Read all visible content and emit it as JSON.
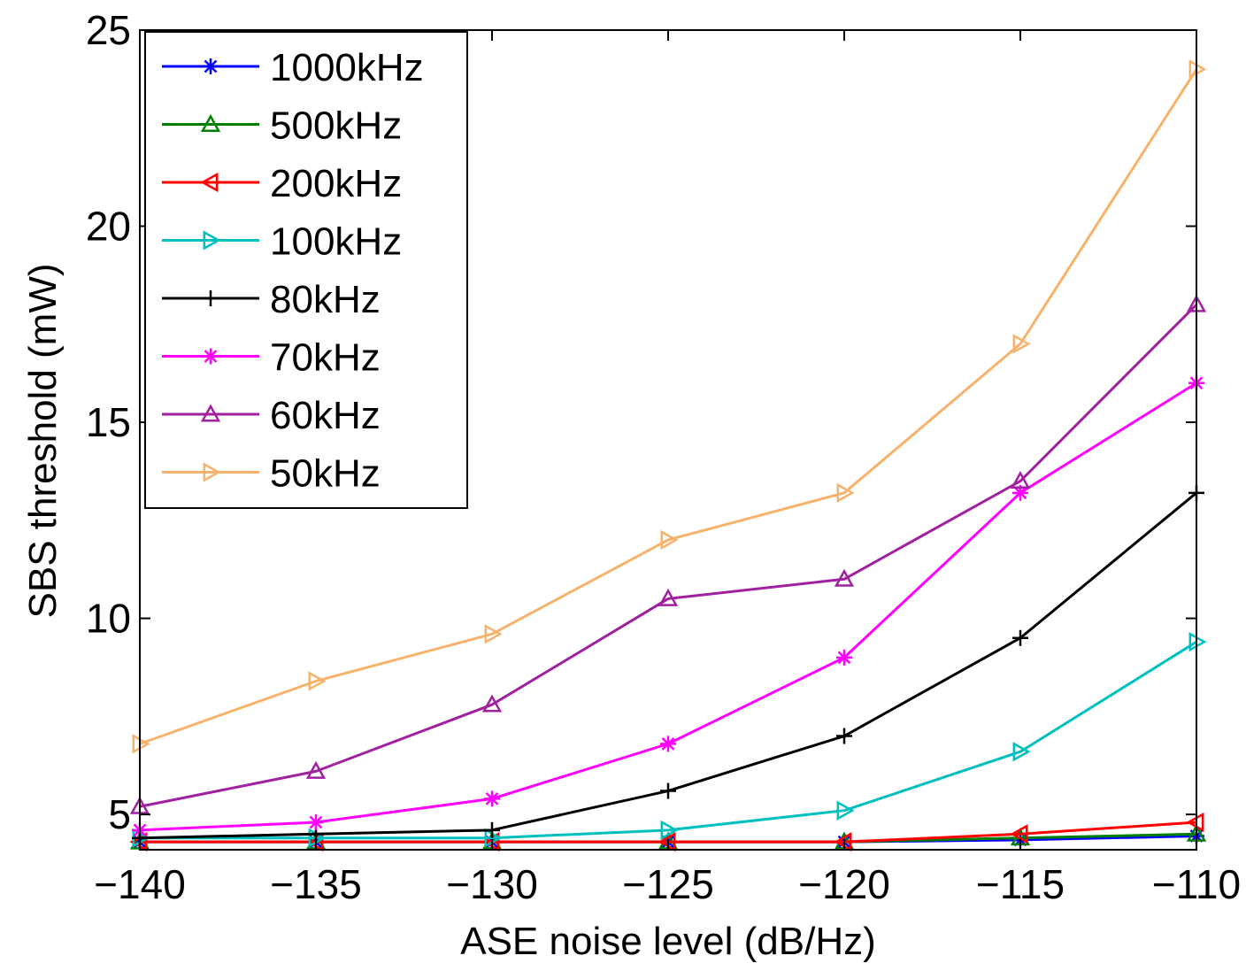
{
  "chart_data": {
    "type": "line",
    "title": "",
    "xlabel": "ASE noise level (dB/Hz)",
    "ylabel": "SBS threshold (mW)",
    "xlim": [
      -140,
      -110
    ],
    "ylim": [
      4.1,
      25
    ],
    "xticks": [
      -140,
      -135,
      -130,
      -125,
      -120,
      -115,
      -110
    ],
    "yticks": [
      5,
      10,
      15,
      20,
      25
    ],
    "x": [
      -140,
      -135,
      -130,
      -125,
      -120,
      -115,
      -110
    ],
    "grid": false,
    "legend_position": "top-left",
    "series": [
      {
        "name": "1000kHz",
        "color": "#0000ff",
        "marker": "asterisk",
        "values": [
          4.3,
          4.3,
          4.3,
          4.3,
          4.3,
          4.35,
          4.45
        ]
      },
      {
        "name": "500kHz",
        "color": "#008000",
        "marker": "triangle-up",
        "values": [
          4.3,
          4.3,
          4.3,
          4.3,
          4.3,
          4.4,
          4.5
        ]
      },
      {
        "name": "200kHz",
        "color": "#ff0000",
        "marker": "triangle-left",
        "values": [
          4.3,
          4.3,
          4.3,
          4.3,
          4.3,
          4.5,
          4.8
        ]
      },
      {
        "name": "100kHz",
        "color": "#00bfbf",
        "marker": "triangle-right",
        "values": [
          4.4,
          4.4,
          4.4,
          4.6,
          5.1,
          6.6,
          9.4
        ]
      },
      {
        "name": "80kHz",
        "color": "#000000",
        "marker": "plus",
        "values": [
          4.4,
          4.5,
          4.6,
          5.6,
          7.0,
          9.5,
          13.2
        ]
      },
      {
        "name": "70kHz",
        "color": "#ff00ff",
        "marker": "asterisk",
        "values": [
          4.6,
          4.8,
          5.4,
          6.8,
          9.0,
          13.2,
          16.0
        ]
      },
      {
        "name": "60kHz",
        "color": "#a020a0",
        "marker": "triangle-up",
        "values": [
          5.2,
          6.1,
          7.8,
          10.5,
          11.0,
          13.5,
          18.0
        ]
      },
      {
        "name": "50kHz",
        "color": "#f7b26b",
        "marker": "triangle-right",
        "values": [
          6.8,
          8.4,
          9.6,
          12.0,
          13.2,
          17.0,
          24.0
        ]
      }
    ]
  }
}
